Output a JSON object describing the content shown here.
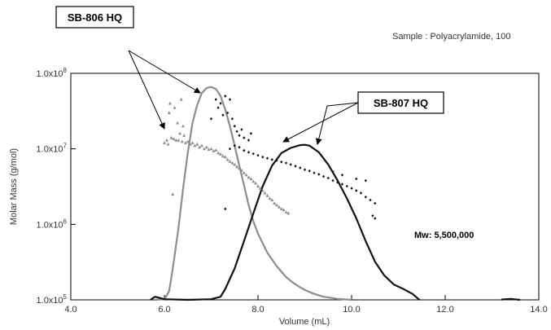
{
  "chart_data": {
    "type": "scatter",
    "title": "",
    "sample_label": "Sample : Polyacrylamide, 100",
    "xlabel": "Volume (mL)",
    "ylabel": "Molar Mass (g/mol)",
    "xlim": [
      4.0,
      14.0
    ],
    "ylim_log10": [
      5,
      8
    ],
    "y_scale": "log",
    "x_ticks": [
      {
        "value": 4.0,
        "label": "4.0"
      },
      {
        "value": 6.0,
        "label": "6.0"
      },
      {
        "value": 8.0,
        "label": "8.0"
      },
      {
        "value": 10.0,
        "label": "10.0"
      },
      {
        "value": 12.0,
        "label": "12.0"
      },
      {
        "value": 14.0,
        "label": "14.0"
      }
    ],
    "y_ticks": [
      {
        "exp": 5,
        "label_base": "1.0x10",
        "label_exp": "5"
      },
      {
        "exp": 6,
        "label_base": "1.0x10",
        "label_exp": "6"
      },
      {
        "exp": 7,
        "label_base": "1.0x10",
        "label_exp": "7"
      },
      {
        "exp": 8,
        "label_base": "1.0x10",
        "label_exp": "8"
      }
    ],
    "annotations": {
      "sb806": "SB-806 HQ",
      "sb807": "SB-807 HQ",
      "mw": "Mw: 5,500,000"
    },
    "colors": {
      "sb806": "#8c8c8c",
      "sb807": "#111111"
    },
    "series": [
      {
        "kind": "molar_mass_points",
        "marker": "triangle",
        "color": "#8c8c8c",
        "points": [
          [
            6.0,
            12000000.0
          ],
          [
            6.05,
            13000000.0
          ],
          [
            6.08,
            11500000.0
          ],
          [
            6.1,
            30000000.0
          ],
          [
            6.12,
            40000000.0
          ],
          [
            6.15,
            14000000.0
          ],
          [
            6.18,
            2500000.0
          ],
          [
            6.2,
            13500000.0
          ],
          [
            6.22,
            35000000.0
          ],
          [
            6.25,
            13000000.0
          ],
          [
            6.28,
            22000000.0
          ],
          [
            6.3,
            13000000.0
          ],
          [
            6.33,
            16000000.0
          ],
          [
            6.36,
            45000000.0
          ],
          [
            6.38,
            12500000.0
          ],
          [
            6.4,
            20000000.0
          ],
          [
            6.42,
            15000000.0
          ],
          [
            6.45,
            12000000.0
          ],
          [
            6.5,
            12500000.0
          ],
          [
            6.55,
            11500000.0
          ],
          [
            6.6,
            12000000.0
          ],
          [
            6.65,
            11000000.0
          ],
          [
            6.7,
            11500000.0
          ],
          [
            6.75,
            10500000.0
          ],
          [
            6.8,
            11000000.0
          ],
          [
            6.85,
            10000000.0
          ],
          [
            6.9,
            10500000.0
          ],
          [
            6.95,
            9800000.0
          ],
          [
            7.0,
            10000000.0
          ],
          [
            7.05,
            9400000.0
          ],
          [
            7.1,
            9600000.0
          ],
          [
            7.15,
            8800000.0
          ],
          [
            7.2,
            8500000.0
          ],
          [
            7.25,
            8000000.0
          ],
          [
            7.3,
            7800000.0
          ],
          [
            7.35,
            7200000.0
          ],
          [
            7.4,
            6800000.0
          ],
          [
            7.45,
            6500000.0
          ],
          [
            7.5,
            6200000.0
          ],
          [
            7.55,
            5800000.0
          ],
          [
            7.6,
            5500000.0
          ],
          [
            7.65,
            5200000.0
          ],
          [
            7.7,
            4800000.0
          ],
          [
            7.75,
            4500000.0
          ],
          [
            7.8,
            4200000.0
          ],
          [
            7.85,
            4000000.0
          ],
          [
            7.9,
            3700000.0
          ],
          [
            7.95,
            3500000.0
          ],
          [
            8.0,
            3200000.0
          ],
          [
            8.05,
            3000000.0
          ],
          [
            8.1,
            2800000.0
          ],
          [
            8.15,
            2600000.0
          ],
          [
            8.2,
            2400000.0
          ],
          [
            8.25,
            2200000.0
          ],
          [
            8.3,
            2100000.0
          ],
          [
            8.35,
            1900000.0
          ],
          [
            8.4,
            1800000.0
          ],
          [
            8.45,
            1700000.0
          ],
          [
            8.5,
            1600000.0
          ],
          [
            8.55,
            1550000.0
          ],
          [
            8.6,
            1450000.0
          ],
          [
            8.65,
            1400000.0
          ]
        ]
      },
      {
        "kind": "molar_mass_points",
        "marker": "diamond",
        "color": "#111111",
        "points": [
          [
            7.0,
            25000000.0
          ],
          [
            7.1,
            45000000.0
          ],
          [
            7.15,
            35000000.0
          ],
          [
            7.2,
            40000000.0
          ],
          [
            7.25,
            28000000.0
          ],
          [
            7.3,
            50000000.0
          ],
          [
            7.35,
            30000000.0
          ],
          [
            7.4,
            45000000.0
          ],
          [
            7.45,
            25000000.0
          ],
          [
            7.5,
            20000000.0
          ],
          [
            7.55,
            17000000.0
          ],
          [
            7.6,
            15000000.0
          ],
          [
            7.65,
            18000000.0
          ],
          [
            7.7,
            14000000.0
          ],
          [
            7.8,
            13000000.0
          ],
          [
            7.85,
            16000000.0
          ],
          [
            7.3,
            1600000.0
          ],
          [
            7.4,
            10000000.0
          ],
          [
            7.5,
            11000000.0
          ],
          [
            7.6,
            10500000.0
          ],
          [
            7.7,
            9500000.0
          ],
          [
            7.8,
            9000000.0
          ],
          [
            7.9,
            8600000.0
          ],
          [
            8.0,
            8200000.0
          ],
          [
            8.1,
            7800000.0
          ],
          [
            8.2,
            7500000.0
          ],
          [
            8.3,
            7200000.0
          ],
          [
            8.4,
            7000000.0
          ],
          [
            8.5,
            6700000.0
          ],
          [
            8.6,
            6500000.0
          ],
          [
            8.7,
            6200000.0
          ],
          [
            8.8,
            5900000.0
          ],
          [
            8.9,
            5600000.0
          ],
          [
            9.0,
            5300000.0
          ],
          [
            9.1,
            5100000.0
          ],
          [
            9.2,
            4800000.0
          ],
          [
            9.3,
            4600000.0
          ],
          [
            9.4,
            4300000.0
          ],
          [
            9.5,
            4100000.0
          ],
          [
            9.6,
            3800000.0
          ],
          [
            9.7,
            3600000.0
          ],
          [
            9.8,
            3400000.0
          ],
          [
            9.9,
            3200000.0
          ],
          [
            10.0,
            3000000.0
          ],
          [
            10.1,
            2800000.0
          ],
          [
            10.2,
            2600000.0
          ],
          [
            10.3,
            2300000.0
          ],
          [
            10.4,
            2100000.0
          ],
          [
            10.5,
            1900000.0
          ],
          [
            9.6,
            5000000.0
          ],
          [
            9.8,
            4500000.0
          ],
          [
            10.1,
            4000000.0
          ],
          [
            10.3,
            3800000.0
          ],
          [
            10.45,
            1300000.0
          ],
          [
            10.5,
            1200000.0
          ]
        ]
      },
      {
        "kind": "detector_trace",
        "color": "#8c8c8c",
        "trace": [
          [
            5.8,
            100000.0
          ],
          [
            6.0,
            102000.0
          ],
          [
            6.1,
            130000.0
          ],
          [
            6.15,
            200000.0
          ],
          [
            6.2,
            320000.0
          ],
          [
            6.3,
            900000.0
          ],
          [
            6.4,
            3000000.0
          ],
          [
            6.5,
            9000000.0
          ],
          [
            6.6,
            22000000.0
          ],
          [
            6.7,
            38000000.0
          ],
          [
            6.8,
            55000000.0
          ],
          [
            6.9,
            64000000.0
          ],
          [
            7.0,
            66000000.0
          ],
          [
            7.1,
            62000000.0
          ],
          [
            7.2,
            50000000.0
          ],
          [
            7.3,
            33000000.0
          ],
          [
            7.4,
            20000000.0
          ],
          [
            7.5,
            11000000.0
          ],
          [
            7.6,
            6000000.0
          ],
          [
            7.7,
            3300000.0
          ],
          [
            7.8,
            1800000.0
          ],
          [
            7.9,
            1100000.0
          ],
          [
            8.0,
            750000.0
          ],
          [
            8.2,
            420000.0
          ],
          [
            8.4,
            280000.0
          ],
          [
            8.6,
            200000.0
          ],
          [
            8.8,
            160000.0
          ],
          [
            9.0,
            135000.0
          ],
          [
            9.2,
            120000.0
          ],
          [
            9.4,
            110000.0
          ],
          [
            9.7,
            103000.0
          ],
          [
            10.0,
            100000.0
          ]
        ]
      },
      {
        "kind": "detector_trace",
        "color": "#111111",
        "trace": [
          [
            5.7,
            100000.0
          ],
          [
            5.8,
            110000.0
          ],
          [
            5.9,
            106000.0
          ],
          [
            6.0,
            102000.0
          ],
          [
            6.5,
            100000.0
          ],
          [
            7.0,
            102000.0
          ],
          [
            7.2,
            110000.0
          ],
          [
            7.3,
            140000.0
          ],
          [
            7.5,
            260000.0
          ],
          [
            7.7,
            600000.0
          ],
          [
            7.9,
            1400000.0
          ],
          [
            8.1,
            3200000.0
          ],
          [
            8.3,
            6000000.0
          ],
          [
            8.5,
            8800000.0
          ],
          [
            8.7,
            10300000.0
          ],
          [
            8.9,
            11200000.0
          ],
          [
            9.0,
            11300000.0
          ],
          [
            9.1,
            11000000.0
          ],
          [
            9.3,
            9000000.0
          ],
          [
            9.5,
            6200000.0
          ],
          [
            9.7,
            3800000.0
          ],
          [
            9.9,
            2200000.0
          ],
          [
            10.1,
            1200000.0
          ],
          [
            10.3,
            600000.0
          ],
          [
            10.5,
            320000.0
          ],
          [
            10.7,
            210000.0
          ],
          [
            10.9,
            160000.0
          ],
          [
            11.1,
            140000.0
          ],
          [
            11.3,
            120000.0
          ],
          [
            11.45,
            100000.0
          ],
          [
            13.2,
            101000.0
          ],
          [
            13.4,
            103000.0
          ],
          [
            13.6,
            100000.0
          ]
        ]
      }
    ]
  }
}
